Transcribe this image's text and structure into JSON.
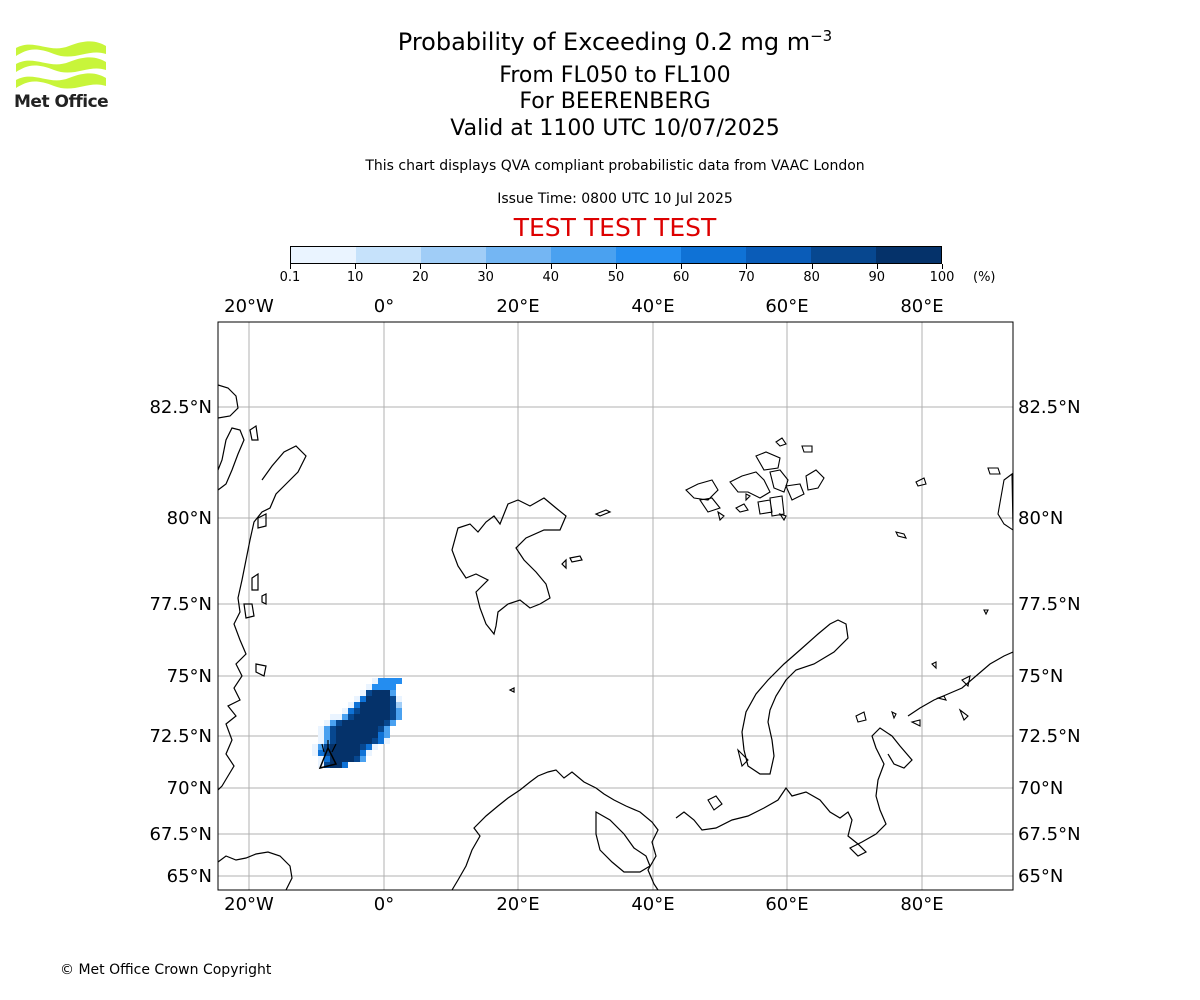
{
  "header": {
    "title_main": "Probability of Exceeding 0.2 mg m",
    "title_sup": "−3",
    "title_levels": "From FL050 to FL100",
    "title_volcano": "For BEERENBERG",
    "title_valid": "Valid at 1100 UTC 10/07/2025",
    "subtitle": "This chart displays QVA compliant probabilistic data from VAAC London",
    "issue_time": "Issue Time: 0800 UTC 10 Jul 2025",
    "test_banner": "TEST TEST TEST",
    "test_color": "#dd0000"
  },
  "logo": {
    "text": "Met Office",
    "color": "#c8f53a"
  },
  "colorbar": {
    "ticks": [
      "0.1",
      "10",
      "20",
      "30",
      "40",
      "50",
      "60",
      "70",
      "80",
      "90",
      "100"
    ],
    "unit": "(%)",
    "colors": [
      "#eaf4ff",
      "#c6e2fb",
      "#a0cdf7",
      "#74b6f3",
      "#4aa1f0",
      "#248df0",
      "#0f72d6",
      "#0a5cb8",
      "#07478f",
      "#05326a"
    ]
  },
  "map": {
    "lon_labels": [
      "20°W",
      "0°",
      "20°E",
      "40°E",
      "60°E",
      "80°E"
    ],
    "lat_labels": [
      "82.5°N",
      "80°N",
      "77.5°N",
      "75°N",
      "72.5°N",
      "70°N",
      "67.5°N",
      "65°N"
    ],
    "plume": {
      "source_lon": -8.2,
      "source_lat": 71.1,
      "max_probability_pct": 100
    }
  },
  "footer": {
    "copyright": "© Met Office Crown Copyright"
  }
}
